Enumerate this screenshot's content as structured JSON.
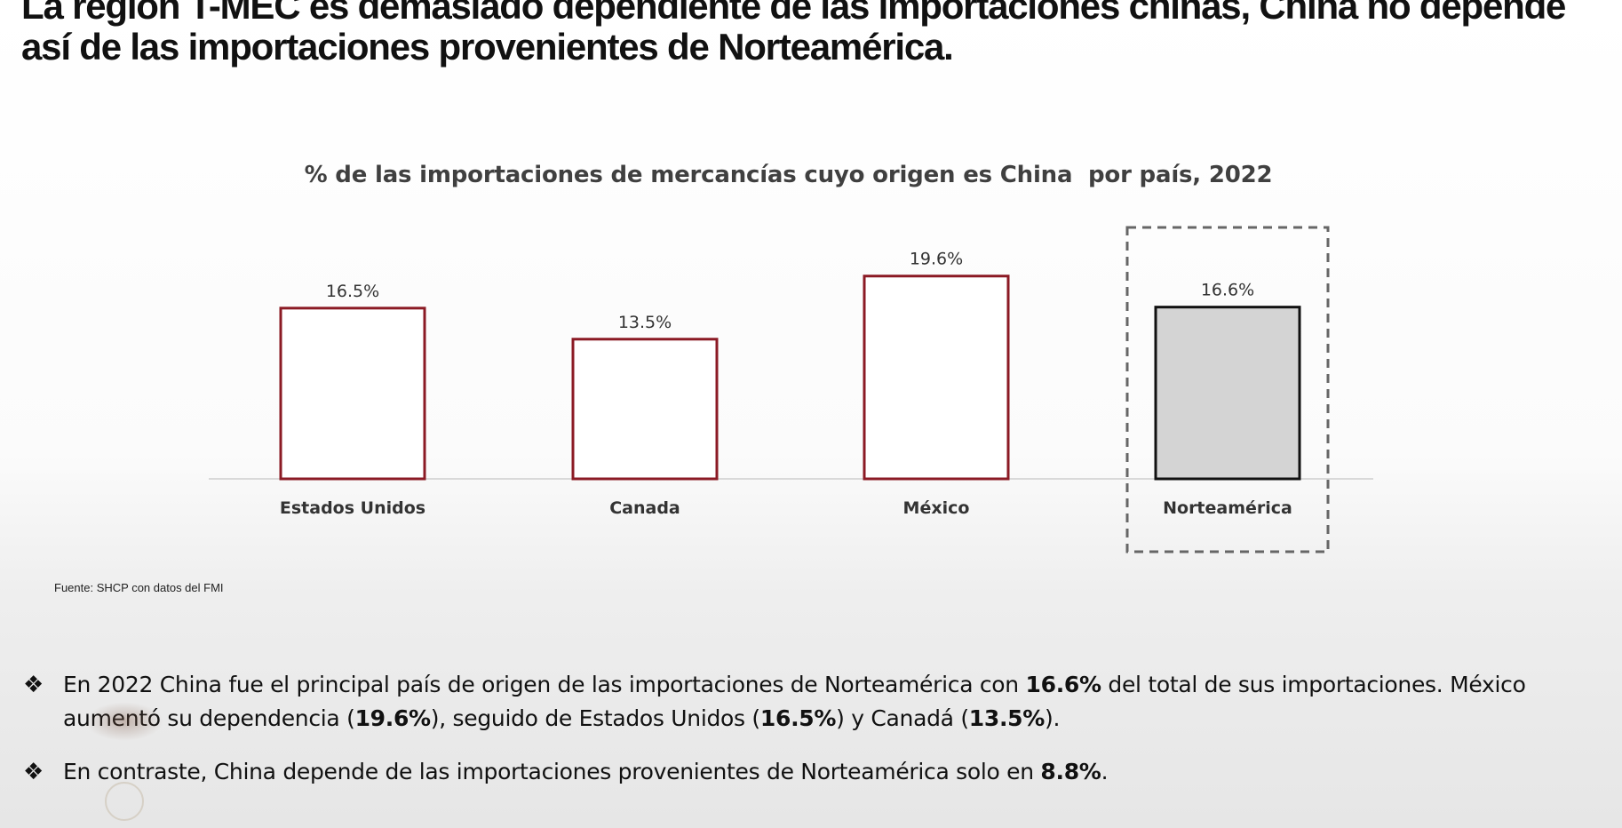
{
  "slide": {
    "title": "La región T-MEC es demasiado dependiente de las importaciones chinas, China no depende así de las importaciones provenientes de Norteamérica.",
    "source": "Fuente: SHCP con datos del FMI",
    "bullet_glyph": "❖",
    "bullets": [
      [
        {
          "t": "En 2022 China fue el principal país de origen de las importaciones de Norteamérica con  "
        },
        {
          "t": "16.6%",
          "b": true
        },
        {
          "t": " del total de sus importaciones. México aumentó su dependencia ("
        },
        {
          "t": "19.6%",
          "b": true
        },
        {
          "t": "), seguido de Estados Unidos ("
        },
        {
          "t": "16.5%",
          "b": true
        },
        {
          "t": ") y Canadá ("
        },
        {
          "t": "13.5%",
          "b": true
        },
        {
          "t": ")."
        }
      ],
      [
        {
          "t": "En contraste, China depende de las importaciones provenientes de Norteamérica solo en "
        },
        {
          "t": "8.8%",
          "b": true
        },
        {
          "t": "."
        }
      ]
    ]
  },
  "chart_data": {
    "type": "bar",
    "title": "% de las importaciones de mercancías cuyo origen es China  por país, 2022",
    "categories": [
      "Estados Unidos",
      "Canada",
      "México",
      "Norteamérica"
    ],
    "values": [
      16.5,
      13.5,
      19.6,
      16.6
    ],
    "value_labels": [
      "16.5%",
      "13.5%",
      "19.6%",
      "16.6%"
    ],
    "highlighted_category": "Norteamérica",
    "ylim": [
      0,
      24.3
    ],
    "xlabel": "",
    "ylabel": "",
    "grid": false,
    "legend": "none",
    "colors": {
      "bar_outline": "#8b1a24",
      "bar_fill": "#ffffff",
      "highlight_fill": "#d4d4d4",
      "highlight_outline": "#111111",
      "axis": "#d9d9d9",
      "labels": "#333333",
      "dashed_box": "#666666"
    }
  }
}
